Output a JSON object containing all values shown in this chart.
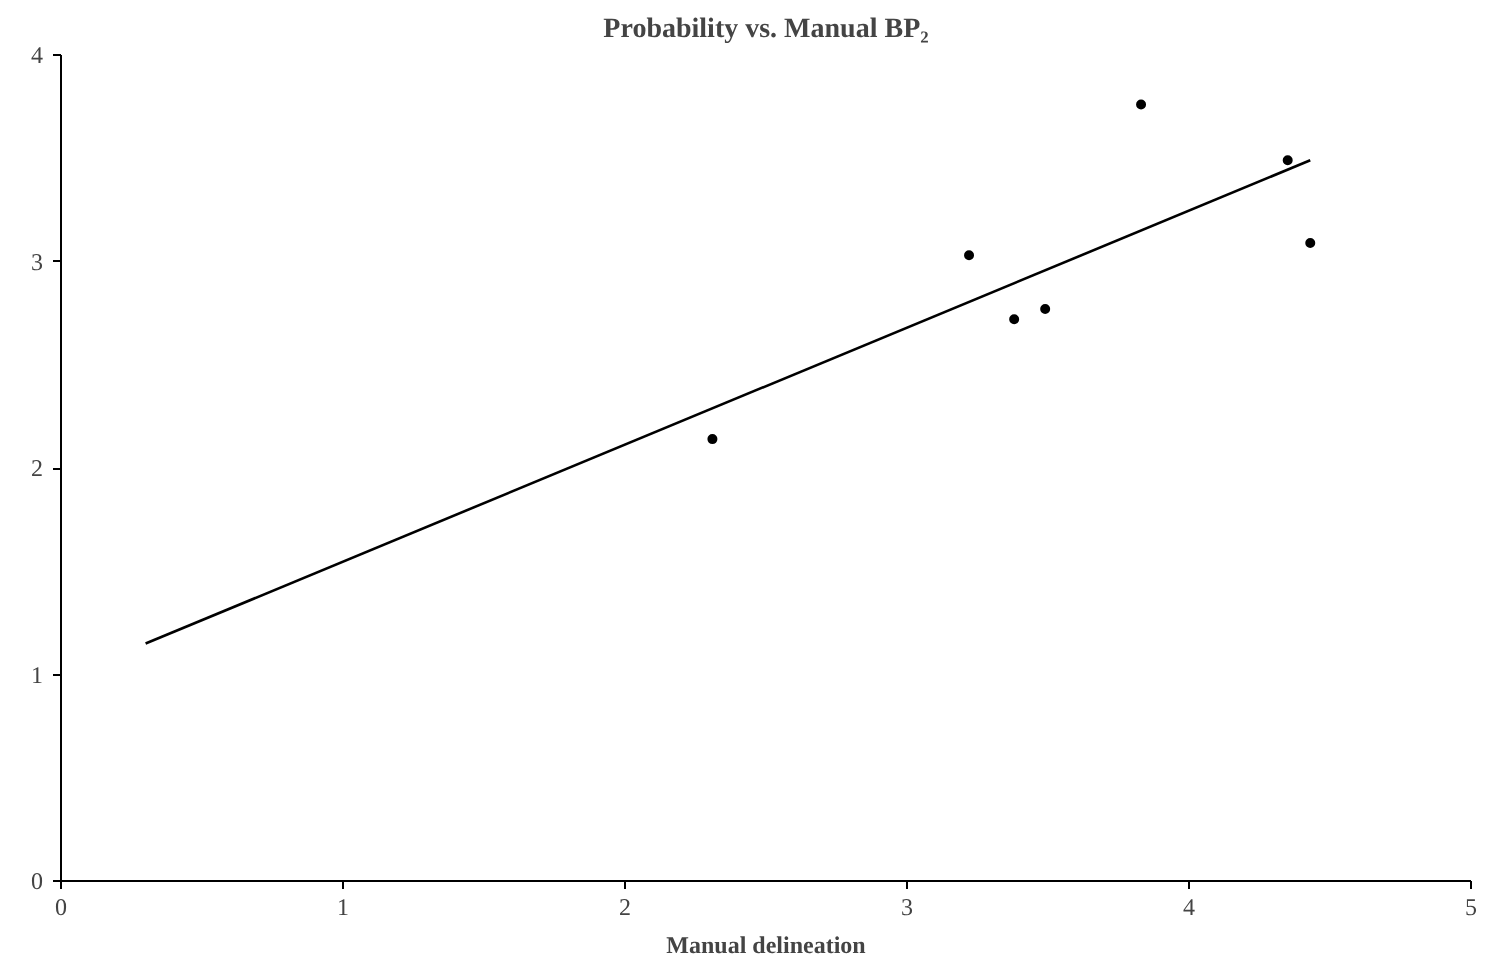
{
  "chart_data": {
    "type": "scatter",
    "title": "Probability vs. Manual BP₂",
    "xlabel": "Manual delineation",
    "xlim": [
      0,
      5
    ],
    "ylim": [
      0,
      4
    ],
    "xticks": [
      0,
      1,
      2,
      3,
      4,
      5
    ],
    "yticks": [
      0,
      1,
      2,
      3,
      4
    ],
    "grid": false,
    "series": [
      {
        "color": "#000000",
        "marker": "circle",
        "x": [
          2.31,
          3.22,
          3.38,
          3.49,
          3.83,
          4.35,
          4.43
        ],
        "values": [
          2.14,
          3.03,
          2.72,
          2.77,
          3.76,
          3.49,
          3.09
        ]
      },
      {
        "type": "line",
        "color": "#000000",
        "x": [
          0.3,
          4.43
        ],
        "values": [
          1.15,
          3.49
        ],
        "line_style": "solid"
      }
    ]
  }
}
